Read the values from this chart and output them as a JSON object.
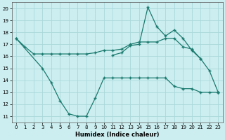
{
  "xlabel": "Humidex (Indice chaleur)",
  "background_color": "#cceef0",
  "grid_color": "#aad8da",
  "line_color": "#1a7a6e",
  "ylim": [
    10.5,
    20.5
  ],
  "xlim": [
    -0.5,
    23.5
  ],
  "yticks": [
    11,
    12,
    13,
    14,
    15,
    16,
    17,
    18,
    19,
    20
  ],
  "xticks": [
    0,
    1,
    2,
    3,
    4,
    5,
    6,
    7,
    8,
    9,
    10,
    11,
    12,
    13,
    14,
    15,
    16,
    17,
    18,
    19,
    20,
    21,
    22,
    23
  ],
  "line_upper": {
    "x": [
      0,
      1,
      2,
      3,
      4,
      5,
      6,
      7,
      8,
      9,
      10,
      11,
      12,
      13,
      14,
      15,
      16,
      17,
      18,
      19,
      20,
      21,
      22,
      23
    ],
    "y": [
      17.5,
      16.8,
      16.2,
      16.2,
      16.2,
      16.2,
      16.2,
      16.2,
      16.2,
      16.3,
      16.5,
      16.5,
      16.6,
      17.0,
      17.2,
      17.2,
      17.2,
      17.5,
      17.5,
      16.8,
      16.6,
      15.8,
      14.8,
      13.0
    ]
  },
  "line_peak": {
    "x": [
      11,
      12,
      13,
      14,
      15,
      16,
      17,
      18,
      19,
      20,
      21,
      22,
      23
    ],
    "y": [
      16.1,
      16.3,
      16.9,
      17.0,
      20.1,
      18.5,
      17.7,
      18.2,
      17.5,
      16.5,
      15.8,
      null,
      13.0
    ]
  },
  "line_lower": {
    "x": [
      0,
      3,
      4,
      5,
      6,
      7,
      8,
      9,
      10,
      11,
      12,
      13,
      14,
      15,
      16,
      17,
      18,
      19,
      20,
      21,
      22,
      23
    ],
    "y": [
      17.5,
      15.0,
      13.8,
      12.3,
      11.2,
      11.0,
      11.0,
      12.5,
      14.2,
      14.2,
      14.2,
      14.2,
      14.2,
      14.2,
      14.2,
      14.2,
      13.5,
      13.3,
      13.3,
      13.0,
      13.0,
      13.0
    ]
  }
}
